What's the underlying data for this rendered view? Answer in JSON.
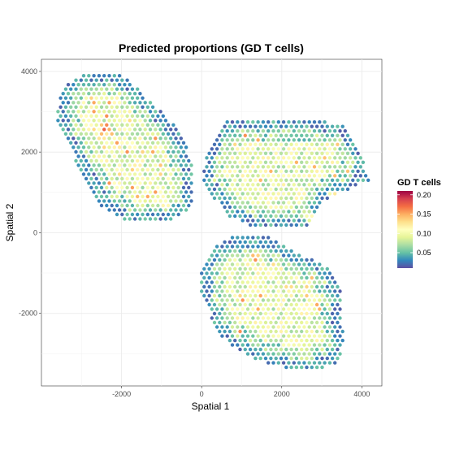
{
  "chart_data": {
    "type": "scatter",
    "title": "Predicted proportions (GD T cells)",
    "xlabel": "Spatial 1",
    "ylabel": "Spatial 2",
    "xlim": [
      -4000,
      4500
    ],
    "ylim": [
      -3800,
      4300
    ],
    "x_ticks": [
      -2000,
      0,
      2000,
      4000
    ],
    "y_ticks": [
      -2000,
      0,
      2000,
      4000
    ],
    "x_tick_labels": [
      "-2000",
      "0",
      "2000",
      "4000"
    ],
    "y_tick_labels": [
      "-2000",
      "0",
      "2000",
      "4000"
    ],
    "grid": true,
    "legend": {
      "title": "GD T cells",
      "placement": "right",
      "range": [
        0.01,
        0.21
      ],
      "ticks": [
        0.05,
        0.1,
        0.15,
        0.2
      ],
      "tick_labels": [
        "0.05",
        "0.10",
        "0.15",
        "0.20"
      ],
      "palette": [
        "#5e4fa2",
        "#3288bd",
        "#66c2a5",
        "#abdda4",
        "#e6f598",
        "#ffffbf",
        "#fee08b",
        "#fdae61",
        "#f46d43",
        "#d53e4f",
        "#9e0142"
      ]
    },
    "sections": [
      {
        "name": "upper-left",
        "polygon": [
          [
            -2900,
            4000
          ],
          [
            -2000,
            3950
          ],
          [
            -1100,
            3100
          ],
          [
            -450,
            2400
          ],
          [
            -200,
            1500
          ],
          [
            -250,
            600
          ],
          [
            -950,
            230
          ],
          [
            -1900,
            250
          ],
          [
            -2550,
            700
          ],
          [
            -3100,
            1700
          ],
          [
            -3650,
            2900
          ],
          [
            -3500,
            3600
          ]
        ],
        "hot_spots": [
          [
            -2400,
            2600,
            0.2
          ],
          [
            -2100,
            2200,
            0.17
          ],
          [
            -1700,
            1600,
            0.16
          ],
          [
            -2700,
            3000,
            0.16
          ],
          [
            -900,
            700,
            0.15
          ],
          [
            -2500,
            2400,
            0.17
          ],
          [
            -1800,
            2800,
            0.14
          ]
        ]
      },
      {
        "name": "upper-right",
        "polygon": [
          [
            650,
            2800
          ],
          [
            2900,
            2800
          ],
          [
            3550,
            2650
          ],
          [
            3950,
            2100
          ],
          [
            4200,
            1300
          ],
          [
            3700,
            1100
          ],
          [
            3100,
            800
          ],
          [
            2650,
            120
          ],
          [
            1400,
            80
          ],
          [
            600,
            450
          ],
          [
            0,
            1300
          ],
          [
            150,
            2100
          ]
        ],
        "hot_spots": [
          [
            3300,
            900,
            0.16
          ],
          [
            2500,
            1000,
            0.15
          ],
          [
            1400,
            1300,
            0.14
          ],
          [
            3200,
            2000,
            0.14
          ],
          [
            2700,
            400,
            0.14
          ],
          [
            2900,
            1600,
            0.13
          ]
        ]
      },
      {
        "name": "lower",
        "polygon": [
          [
            800,
            -100
          ],
          [
            1700,
            -100
          ],
          [
            2800,
            -700
          ],
          [
            3200,
            -900
          ],
          [
            3500,
            -1500
          ],
          [
            3500,
            -2000
          ],
          [
            3550,
            -2800
          ],
          [
            3350,
            -3300
          ],
          [
            2450,
            -3450
          ],
          [
            1500,
            -3200
          ],
          [
            850,
            -2900
          ],
          [
            350,
            -2400
          ],
          [
            0,
            -1500
          ],
          [
            0,
            -800
          ],
          [
            300,
            -300
          ]
        ],
        "hot_spots": [
          [
            2800,
            -1600,
            0.14
          ],
          [
            2000,
            -2300,
            0.13
          ],
          [
            1200,
            -1300,
            0.12
          ],
          [
            2500,
            -2800,
            0.12
          ]
        ]
      }
    ]
  }
}
